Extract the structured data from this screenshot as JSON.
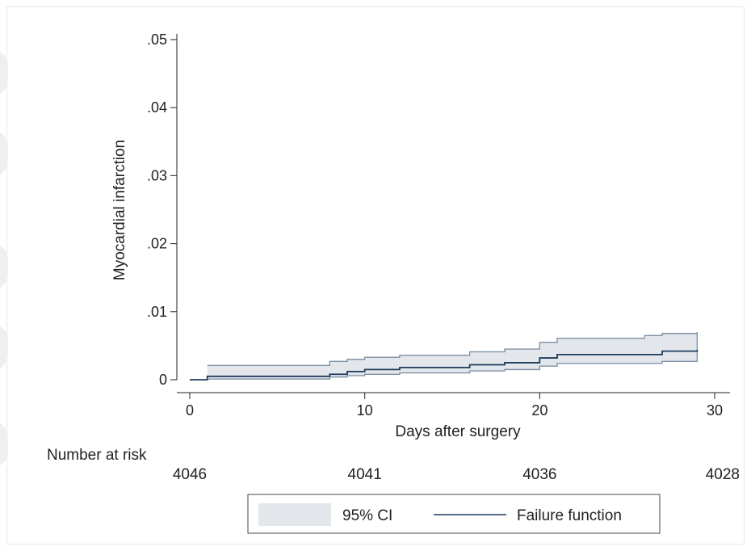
{
  "colors": {
    "line": "#1f3c5c",
    "ci_fill": "#e3e7ec",
    "ci_border": "#7f92a8",
    "axis": "#222222"
  },
  "chart_data": {
    "type": "line",
    "title": "",
    "xlabel": "Days after surgery",
    "ylabel": "Myocardial infarction",
    "xlim": [
      0,
      30
    ],
    "ylim": [
      0,
      0.05
    ],
    "xticks": [
      0,
      10,
      20,
      30
    ],
    "xtick_labels": [
      "0",
      "10",
      "20",
      "30"
    ],
    "yticks": [
      0,
      0.01,
      0.02,
      0.03,
      0.04,
      0.05
    ],
    "ytick_labels": [
      "0",
      ".01",
      ".02",
      ".03",
      ".04",
      ".05"
    ],
    "grid": false,
    "series": [
      {
        "name": "Failure function",
        "kind": "step",
        "x": [
          0,
          1,
          8,
          9,
          10,
          12,
          16,
          18,
          20,
          21,
          26,
          27,
          29
        ],
        "y": [
          0,
          0.0005,
          0.0008,
          0.0012,
          0.0015,
          0.0018,
          0.0022,
          0.0025,
          0.0032,
          0.0037,
          0.0037,
          0.0042,
          0.0044
        ]
      },
      {
        "name": "95% CI",
        "kind": "band",
        "x": [
          1,
          8,
          9,
          10,
          12,
          16,
          18,
          20,
          21,
          26,
          27,
          29
        ],
        "lower": [
          0.0001,
          0.0004,
          0.0006,
          0.0008,
          0.001,
          0.0013,
          0.0015,
          0.002,
          0.0024,
          0.0024,
          0.0027,
          0.0029
        ],
        "upper": [
          0.0021,
          0.0027,
          0.003,
          0.0033,
          0.0036,
          0.0041,
          0.0045,
          0.0055,
          0.0061,
          0.0065,
          0.0068,
          0.007
        ]
      }
    ],
    "risk_table": {
      "label": "Number at risk",
      "x": [
        0,
        10,
        20,
        30
      ],
      "values": [
        "4046",
        "4041",
        "4036",
        "4028"
      ]
    },
    "legend": {
      "placement": "bottom",
      "entries": [
        "95% CI",
        "Failure function"
      ]
    }
  }
}
